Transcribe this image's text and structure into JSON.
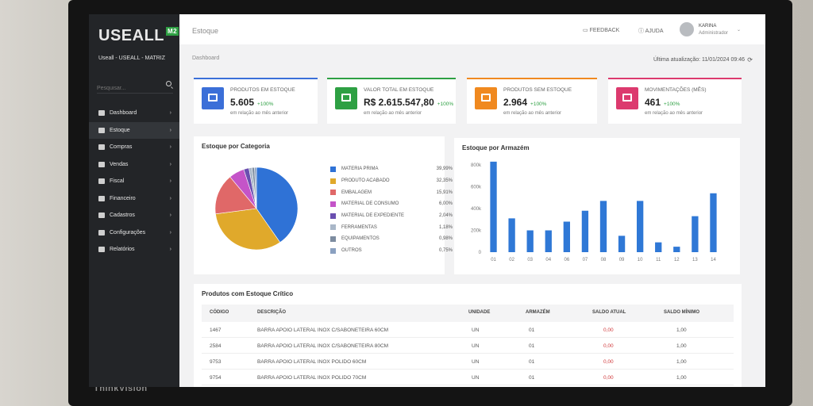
{
  "monitor_brand": "ThinkVision",
  "sidebar": {
    "logo": "USEALL",
    "logo_badge": "M2",
    "company": "Useall - USEALL - MATRIZ",
    "search_placeholder": "Pesquisar...",
    "items": [
      {
        "label": "Dashboard",
        "icon": "dashboard-icon"
      },
      {
        "label": "Estoque",
        "icon": "box-icon",
        "active": true
      },
      {
        "label": "Compras",
        "icon": "cart-icon"
      },
      {
        "label": "Vendas",
        "icon": "truck-icon"
      },
      {
        "label": "Fiscal",
        "icon": "document-icon"
      },
      {
        "label": "Financeiro",
        "icon": "wallet-icon"
      },
      {
        "label": "Cadastros",
        "icon": "database-icon"
      },
      {
        "label": "Configurações",
        "icon": "gear-icon"
      },
      {
        "label": "Relatórios",
        "icon": "report-icon"
      }
    ]
  },
  "header": {
    "title": "Estoque",
    "feedback": "FEEDBACK",
    "help": "AJUDA",
    "user_name": "KARINA",
    "user_role": "Administrador"
  },
  "subbar": {
    "breadcrumb": "Dashboard",
    "last_update": "Última atualização: 11/01/2024 09:46"
  },
  "cards": [
    {
      "label": "PRODUTOS EM ESTOQUE",
      "value": "5.605",
      "delta": "+100%",
      "note": "em relação ao mês anterior",
      "color": "#3b6fd8"
    },
    {
      "label": "VALOR TOTAL EM ESTOQUE",
      "value": "R$ 2.615.547,80",
      "delta": "+100%",
      "note": "em relação ao mês anterior",
      "color": "#2ea043"
    },
    {
      "label": "PRODUTOS SEM ESTOQUE",
      "value": "2.964",
      "delta": "+100%",
      "note": "em relação ao mês anterior",
      "color": "#f0891f"
    },
    {
      "label": "MOVIMENTAÇÕES (MÊS)",
      "value": "461",
      "delta": "+100%",
      "note": "em relação ao mês anterior",
      "color": "#dc3a6e"
    }
  ],
  "pie_panel": {
    "title": "Estoque por Categoria"
  },
  "bar_panel": {
    "title": "Estoque por Armazém"
  },
  "chart_data": [
    {
      "type": "pie",
      "title": "Estoque por Categoria",
      "categories": [
        "MATERIA PRIMA",
        "PRODUTO ACABADO",
        "EMBALAGEM",
        "MATERIAL DE CONSUMO",
        "MATERIAL DE EXPEDIENTE",
        "FERRAMENTAS",
        "EQUIPAMENTOS",
        "OUTROS"
      ],
      "labels": [
        "39,99%",
        "32,35%",
        "15,91%",
        "6,00%",
        "2,04%",
        "1,18%",
        "0,98%",
        "0,75%"
      ],
      "values": [
        39.99,
        32.35,
        15.91,
        6.0,
        2.04,
        1.18,
        0.98,
        0.75
      ],
      "colors": [
        "#2f72d6",
        "#e0a92b",
        "#e06868",
        "#c454c8",
        "#6a4fb0",
        "#a9b7c8",
        "#7d8ca0",
        "#8aa0c0"
      ]
    },
    {
      "type": "bar",
      "title": "Estoque por Armazém",
      "categories": [
        "01",
        "02",
        "03",
        "04",
        "06",
        "07",
        "08",
        "09",
        "10",
        "11",
        "12",
        "13",
        "14"
      ],
      "values": [
        830000,
        310000,
        200000,
        200000,
        280000,
        380000,
        470000,
        150000,
        470000,
        90000,
        50000,
        330000,
        540000
      ],
      "ytick_labels": [
        "0",
        "200k",
        "400k",
        "600k",
        "800k"
      ],
      "ylim": [
        0,
        800000
      ],
      "color": "#2f78d6"
    }
  ],
  "critical": {
    "title": "Produtos com Estoque Crítico",
    "headers": [
      "CÓDIGO",
      "DESCRIÇÃO",
      "UNIDADE",
      "ARMAZÉM",
      "SALDO ATUAL",
      "SALDO MÍNIMO"
    ],
    "rows": [
      [
        "1467",
        "BARRA APOIO LATERAL INOX C/SABONETEIRA 60CM",
        "UN",
        "01",
        "0,00",
        "1,00"
      ],
      [
        "2584",
        "BARRA APOIO LATERAL INOX C/SABONETEIRA 80CM",
        "UN",
        "01",
        "0,00",
        "1,00"
      ],
      [
        "9753",
        "BARRA APOIO LATERAL INOX POLIDO 60CM",
        "UN",
        "01",
        "0,00",
        "1,00"
      ],
      [
        "9754",
        "BARRA APOIO LATERAL INOX POLIDO 70CM",
        "UN",
        "01",
        "0,00",
        "1,00"
      ]
    ]
  }
}
